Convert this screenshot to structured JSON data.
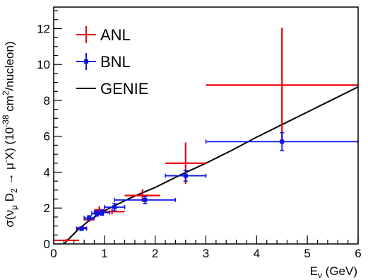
{
  "chart_data": {
    "type": "scatter",
    "xlabel_main": "E",
    "xlabel_sub": "ν",
    "xlabel_unit": " (GeV)",
    "ylabel_parts": {
      "a": "σ(ν",
      "a_sub": "μ",
      "b": " D",
      "b_sub": "2",
      "c": " → μ",
      "c_sup": "-",
      "d": "X) (10",
      "d_sup": "-38",
      "e": " cm",
      "e_sup": "2",
      "f": "/nucleon)"
    },
    "xlim": [
      0,
      6
    ],
    "ylim": [
      0,
      13.2
    ],
    "x_ticks": [
      0,
      1,
      2,
      3,
      4,
      5,
      6
    ],
    "y_ticks": [
      0,
      2,
      4,
      6,
      8,
      10,
      12
    ],
    "legend": {
      "placement": "top-left",
      "entries": [
        "ANL",
        "BNL",
        "GENIE"
      ]
    },
    "series": [
      {
        "name": "ANL",
        "color": "#e8000b",
        "marker": "none",
        "points": [
          {
            "x": 0.25,
            "y": 0.2,
            "xerr": 0.25,
            "yerr": 0.08
          },
          {
            "x": 0.55,
            "y": 0.9,
            "xerr": 0.1,
            "yerr": 0.1
          },
          {
            "x": 0.7,
            "y": 1.35,
            "xerr": 0.1,
            "yerr": 0.12
          },
          {
            "x": 0.9,
            "y": 1.9,
            "xerr": 0.1,
            "yerr": 0.2
          },
          {
            "x": 1.15,
            "y": 1.8,
            "xerr": 0.25,
            "yerr": 0.15
          },
          {
            "x": 1.75,
            "y": 2.7,
            "xerr": 0.35,
            "yerr": 0.35
          },
          {
            "x": 2.6,
            "y": 4.5,
            "xerr": 0.4,
            "yerr": 1.15
          },
          {
            "x": 4.5,
            "y": 8.85,
            "xerr": 1.5,
            "yerr": 3.2
          }
        ]
      },
      {
        "name": "BNL",
        "color": "#0a14e6",
        "marker": "square",
        "points": [
          {
            "x": 0.55,
            "y": 0.85,
            "xerr": 0.1,
            "yerr": 0.1
          },
          {
            "x": 0.7,
            "y": 1.45,
            "xerr": 0.1,
            "yerr": 0.12
          },
          {
            "x": 0.85,
            "y": 1.7,
            "xerr": 0.1,
            "yerr": 0.15
          },
          {
            "x": 0.95,
            "y": 1.75,
            "xerr": 0.15,
            "yerr": 0.15
          },
          {
            "x": 1.2,
            "y": 2.05,
            "xerr": 0.2,
            "yerr": 0.2
          },
          {
            "x": 1.8,
            "y": 2.45,
            "xerr": 0.6,
            "yerr": 0.2
          },
          {
            "x": 2.6,
            "y": 3.8,
            "xerr": 0.4,
            "yerr": 0.3
          },
          {
            "x": 4.5,
            "y": 5.7,
            "xerr": 1.5,
            "yerr": 0.5
          }
        ]
      },
      {
        "name": "GENIE",
        "color": "#000000",
        "type": "line",
        "x": [
          0.2,
          0.5,
          0.7,
          1.0,
          1.5,
          2.0,
          2.5,
          3.0,
          3.5,
          4.0,
          4.5,
          5.0,
          5.5,
          6.0
        ],
        "y": [
          0.0,
          0.85,
          1.3,
          1.85,
          2.55,
          3.15,
          3.85,
          4.5,
          5.2,
          5.95,
          6.65,
          7.35,
          8.05,
          8.75
        ]
      }
    ]
  }
}
